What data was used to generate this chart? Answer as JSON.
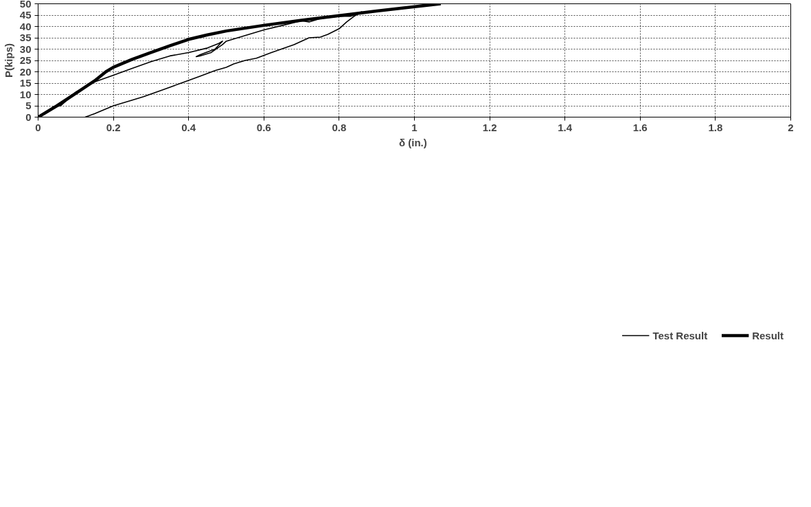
{
  "chart_data": {
    "type": "line",
    "xlabel": "δ  (in.)",
    "ylabel": "P(kips)",
    "xlim": [
      0,
      2
    ],
    "xticks": [
      0,
      0.2,
      0.4,
      0.6,
      0.8,
      1,
      1.2,
      1.4,
      1.6,
      1.8,
      2
    ],
    "ylim": [
      0,
      50
    ],
    "yticks": [
      0,
      5,
      10,
      15,
      20,
      25,
      30,
      35,
      40,
      45,
      50
    ],
    "grid": true,
    "legend": "bottom",
    "line_style": "solid",
    "marker": "none",
    "series": [
      {
        "name": "Test Result",
        "color": "#000000",
        "x": [
          0,
          0.02,
          0.04,
          0.06,
          0.08,
          0.1,
          0.15,
          0.2,
          0.25,
          0.3,
          0.35,
          0.4,
          0.45,
          0.48,
          0.49,
          0.47,
          0.43,
          0.42,
          0.43,
          0.46,
          0.49,
          0.5,
          0.55,
          0.6,
          0.65,
          0.7,
          0.72,
          0.75,
          0.8,
          0.83,
          0.85,
          0.86,
          0.84,
          0.82,
          0.8,
          0.77,
          0.75,
          0.72,
          0.68,
          0.62,
          0.58,
          0.55,
          0.52,
          0.5,
          0.47,
          0.43,
          0.38,
          0.33,
          0.28,
          0.25,
          0.2,
          0.15,
          0.125
        ],
        "values": [
          0,
          2,
          4.5,
          5,
          8,
          11,
          15.5,
          18.5,
          21.5,
          24.5,
          27,
          28.5,
          30.5,
          32.5,
          33.5,
          30,
          27.5,
          26.7,
          27,
          28.5,
          32,
          33.5,
          36,
          38.5,
          40.5,
          42.5,
          42,
          43.5,
          44.5,
          44.5,
          45.5,
          46.5,
          44.5,
          42,
          39,
          36.5,
          35.3,
          35,
          32,
          28.5,
          26,
          25,
          23.5,
          22,
          20.5,
          18,
          15,
          12,
          9,
          7.5,
          5,
          1.5,
          0
        ]
      },
      {
        "name": "Result",
        "color": "#000000",
        "x": [
          0,
          0.05,
          0.1,
          0.15,
          0.18,
          0.2,
          0.25,
          0.3,
          0.35,
          0.4,
          0.45,
          0.5,
          0.6,
          0.7,
          0.8,
          0.9,
          1.0,
          1.07
        ],
        "values": [
          0,
          5,
          10.5,
          16,
          20,
          22,
          25.5,
          28.5,
          31.5,
          34.3,
          36.3,
          38,
          40.5,
          42.7,
          44.8,
          46.8,
          48.7,
          50
        ]
      }
    ]
  }
}
